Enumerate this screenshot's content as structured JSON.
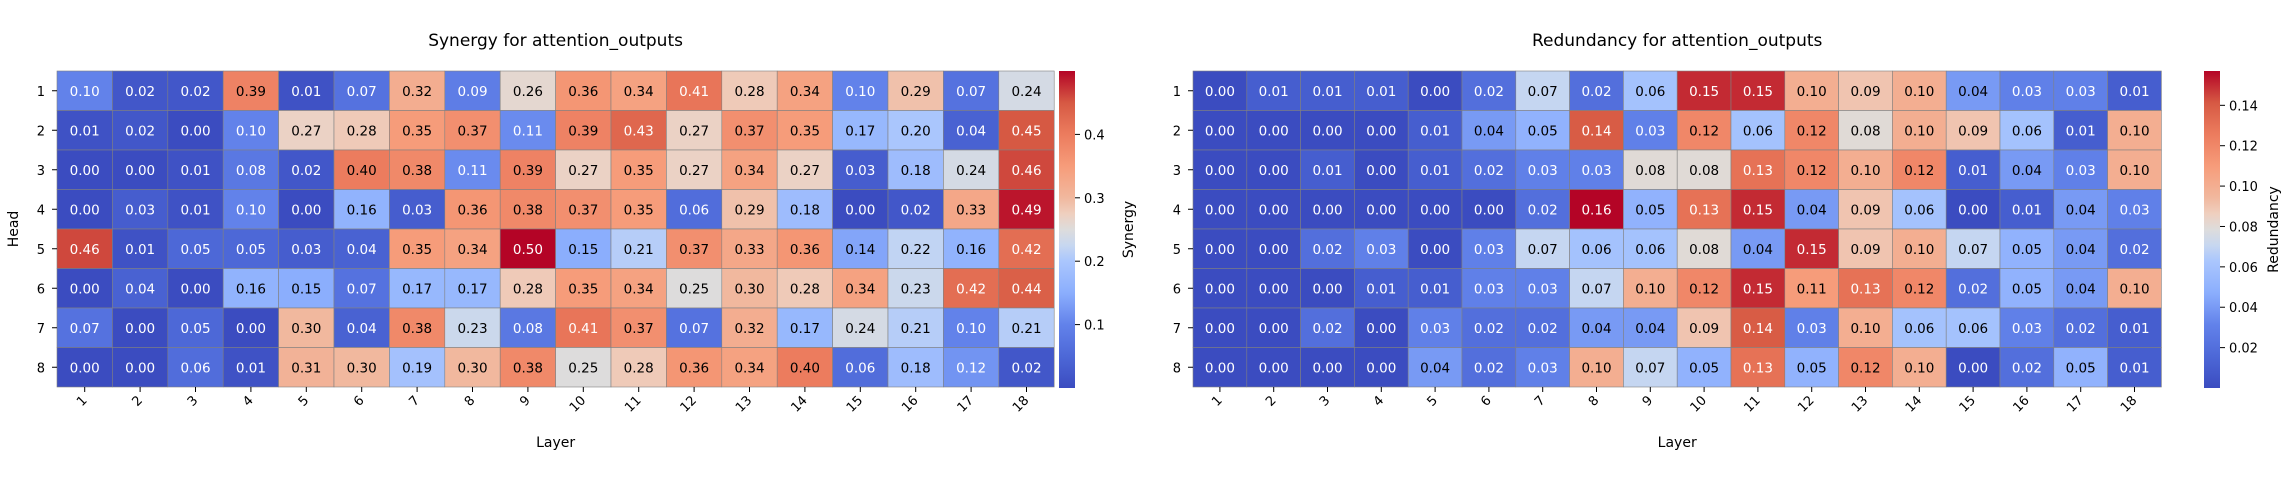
{
  "chart_data": [
    {
      "type": "heatmap",
      "title": "Synergy for attention_outputs",
      "xlabel": "Layer",
      "ylabel": "Head",
      "x_categories": [
        "1",
        "2",
        "3",
        "4",
        "5",
        "6",
        "7",
        "8",
        "9",
        "10",
        "11",
        "12",
        "13",
        "14",
        "15",
        "16",
        "17",
        "18"
      ],
      "y_categories": [
        "1",
        "2",
        "3",
        "4",
        "5",
        "6",
        "7",
        "8"
      ],
      "values": [
        [
          0.1,
          0.02,
          0.02,
          0.39,
          0.01,
          0.07,
          0.32,
          0.09,
          0.26,
          0.36,
          0.34,
          0.41,
          0.28,
          0.34,
          0.1,
          0.29,
          0.07,
          0.24
        ],
        [
          0.01,
          0.02,
          0.0,
          0.1,
          0.27,
          0.28,
          0.35,
          0.37,
          0.11,
          0.39,
          0.43,
          0.27,
          0.37,
          0.35,
          0.17,
          0.2,
          0.04,
          0.45
        ],
        [
          0.0,
          0.0,
          0.01,
          0.08,
          0.02,
          0.4,
          0.38,
          0.11,
          0.39,
          0.27,
          0.35,
          0.27,
          0.34,
          0.27,
          0.03,
          0.18,
          0.24,
          0.46
        ],
        [
          0.0,
          0.03,
          0.01,
          0.1,
          0.0,
          0.16,
          0.03,
          0.36,
          0.38,
          0.37,
          0.35,
          0.06,
          0.29,
          0.18,
          0.0,
          0.02,
          0.33,
          0.49
        ],
        [
          0.46,
          0.01,
          0.05,
          0.05,
          0.03,
          0.04,
          0.35,
          0.34,
          0.5,
          0.15,
          0.21,
          0.37,
          0.33,
          0.36,
          0.14,
          0.22,
          0.16,
          0.42
        ],
        [
          0.0,
          0.04,
          0.0,
          0.16,
          0.15,
          0.07,
          0.17,
          0.17,
          0.28,
          0.35,
          0.34,
          0.25,
          0.3,
          0.28,
          0.34,
          0.23,
          0.42,
          0.44
        ],
        [
          0.07,
          0.0,
          0.05,
          0.0,
          0.3,
          0.04,
          0.38,
          0.23,
          0.08,
          0.41,
          0.37,
          0.07,
          0.32,
          0.17,
          0.24,
          0.21,
          0.1,
          0.21
        ],
        [
          0.0,
          0.0,
          0.06,
          0.01,
          0.31,
          0.3,
          0.19,
          0.3,
          0.38,
          0.25,
          0.28,
          0.36,
          0.34,
          0.4,
          0.06,
          0.18,
          0.12,
          0.02
        ]
      ],
      "vmin": 0.0,
      "vmax": 0.5,
      "colormap": "coolwarm",
      "colorbar": {
        "label": "Synergy",
        "ticks": [
          0.1,
          0.2,
          0.3,
          0.4
        ],
        "tick_labels": [
          "0.1",
          "0.2",
          "0.3",
          "0.4"
        ]
      }
    },
    {
      "type": "heatmap",
      "title": "Redundancy for attention_outputs",
      "xlabel": "Layer",
      "ylabel": "",
      "x_categories": [
        "1",
        "2",
        "3",
        "4",
        "5",
        "6",
        "7",
        "8",
        "9",
        "10",
        "11",
        "12",
        "13",
        "14",
        "15",
        "16",
        "17",
        "18"
      ],
      "y_categories": [
        "1",
        "2",
        "3",
        "4",
        "5",
        "6",
        "7",
        "8"
      ],
      "values": [
        [
          0.0,
          0.01,
          0.01,
          0.01,
          0.0,
          0.02,
          0.07,
          0.02,
          0.06,
          0.15,
          0.15,
          0.1,
          0.09,
          0.1,
          0.04,
          0.03,
          0.03,
          0.01
        ],
        [
          0.0,
          0.0,
          0.0,
          0.0,
          0.01,
          0.04,
          0.05,
          0.14,
          0.03,
          0.12,
          0.06,
          0.12,
          0.08,
          0.1,
          0.09,
          0.06,
          0.01,
          0.1
        ],
        [
          0.0,
          0.0,
          0.01,
          0.0,
          0.01,
          0.02,
          0.03,
          0.03,
          0.08,
          0.08,
          0.13,
          0.12,
          0.1,
          0.12,
          0.01,
          0.04,
          0.03,
          0.1
        ],
        [
          0.0,
          0.0,
          0.0,
          0.0,
          0.0,
          0.0,
          0.02,
          0.16,
          0.05,
          0.13,
          0.15,
          0.04,
          0.09,
          0.06,
          0.0,
          0.01,
          0.04,
          0.03
        ],
        [
          0.0,
          0.0,
          0.02,
          0.03,
          0.0,
          0.03,
          0.07,
          0.06,
          0.06,
          0.08,
          0.04,
          0.15,
          0.09,
          0.1,
          0.07,
          0.05,
          0.04,
          0.02
        ],
        [
          0.0,
          0.0,
          0.0,
          0.01,
          0.01,
          0.03,
          0.03,
          0.07,
          0.1,
          0.12,
          0.15,
          0.11,
          0.13,
          0.12,
          0.02,
          0.05,
          0.04,
          0.1
        ],
        [
          0.0,
          0.0,
          0.02,
          0.0,
          0.03,
          0.02,
          0.02,
          0.04,
          0.04,
          0.09,
          0.14,
          0.03,
          0.1,
          0.06,
          0.06,
          0.03,
          0.02,
          0.01
        ],
        [
          0.0,
          0.0,
          0.0,
          0.0,
          0.04,
          0.02,
          0.03,
          0.1,
          0.07,
          0.05,
          0.13,
          0.05,
          0.12,
          0.1,
          0.0,
          0.02,
          0.05,
          0.01
        ]
      ],
      "vmin": 0.0,
      "vmax": 0.157,
      "colormap": "coolwarm",
      "colorbar": {
        "label": "Redundancy",
        "ticks": [
          0.02,
          0.04,
          0.06,
          0.08,
          0.1,
          0.12,
          0.14
        ],
        "tick_labels": [
          "0.02",
          "0.04",
          "0.06",
          "0.08",
          "0.10",
          "0.12",
          "0.14"
        ]
      }
    }
  ]
}
